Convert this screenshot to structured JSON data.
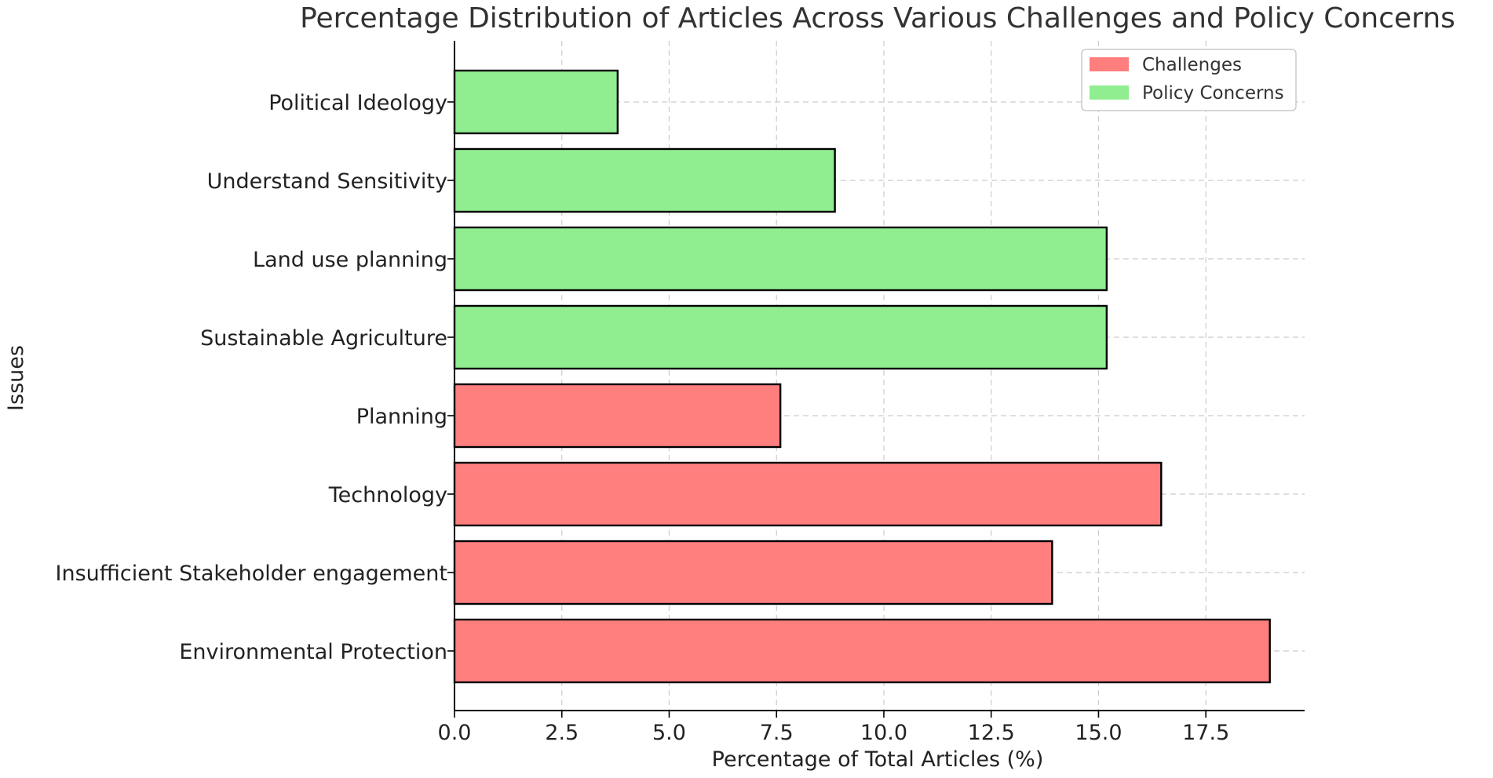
{
  "chart_data": {
    "type": "bar",
    "orientation": "horizontal",
    "title": "Percentage Distribution of Articles Across Various Challenges and Policy Concerns",
    "xlabel": "Percentage of Total Articles (%)",
    "ylabel": "Issues",
    "xlim": [
      0,
      19.8
    ],
    "xticks": [
      "0.0",
      "2.5",
      "5.0",
      "7.5",
      "10.0",
      "12.5",
      "15.0",
      "17.5"
    ],
    "xtick_values": [
      0,
      2.5,
      5,
      7.5,
      10,
      12.5,
      15,
      17.5
    ],
    "grid": true,
    "legend_position": "top-right",
    "categories": [
      "Political Ideology",
      "Understand Sensitivity",
      "Land use planning",
      "Sustainable Agriculture",
      "Planning",
      "Technology",
      "Insufficient Stakeholder engagement",
      "Environmental Protection"
    ],
    "values": [
      3.8,
      8.86,
      15.19,
      15.19,
      7.59,
      16.46,
      13.92,
      18.99
    ],
    "groups": [
      "Policy Concerns",
      "Policy Concerns",
      "Policy Concerns",
      "Policy Concerns",
      "Challenges",
      "Challenges",
      "Challenges",
      "Challenges"
    ],
    "series": [
      {
        "name": "Challenges",
        "color": "#ff7f7f"
      },
      {
        "name": "Policy Concerns",
        "color": "#90ee90"
      }
    ]
  }
}
